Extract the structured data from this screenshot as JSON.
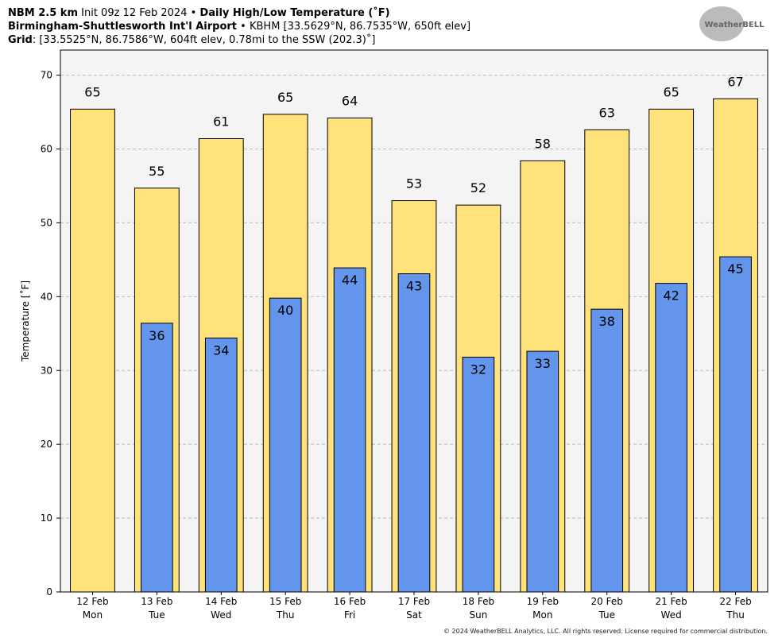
{
  "header": {
    "line1": [
      "NBM 2.5 km",
      "Init 09z 12 Feb 2024",
      "•",
      "Daily High/Low Temperature (˚F)"
    ],
    "line2": [
      "Birmingham-Shuttlesworth Int'l Airport",
      "•",
      "KBHM [33.5629°N, 86.7535°W, 650ft elev]"
    ],
    "line3": [
      "Grid",
      ": [33.5525°N, 86.7586°W, 604ft elev, 0.78mi to the SSW (202.3)˚]"
    ],
    "logo": "WeatherBELL"
  },
  "footer": "© 2024 WeatherBELL Analytics, LLC. All rights reserved. License required for commercial distribution.",
  "chart_data": {
    "type": "bar",
    "ylabel": "Temperature [˚F]",
    "categories": [
      "12 Feb",
      "13 Feb",
      "14 Feb",
      "15 Feb",
      "16 Feb",
      "17 Feb",
      "18 Feb",
      "19 Feb",
      "20 Feb",
      "21 Feb",
      "22 Feb"
    ],
    "weekdays": [
      "Mon",
      "Tue",
      "Wed",
      "Thu",
      "Fri",
      "Sat",
      "Sun",
      "Mon",
      "Tue",
      "Wed",
      "Thu"
    ],
    "series": [
      {
        "color": "#ffe27a",
        "values": [
          65.4,
          54.7,
          61.4,
          64.7,
          64.2,
          53.0,
          52.4,
          58.4,
          62.6,
          65.4,
          66.8
        ],
        "value_labels": [
          "65",
          "55",
          "61",
          "65",
          "64",
          "53",
          "52",
          "58",
          "63",
          "65",
          "67"
        ]
      },
      {
        "color": "#6495ed",
        "values": [
          null,
          36.4,
          34.4,
          39.8,
          43.9,
          43.1,
          31.8,
          32.6,
          38.3,
          41.8,
          45.4
        ],
        "value_labels": [
          null,
          "36",
          "34",
          "40",
          "44",
          "43",
          "32",
          "33",
          "38",
          "42",
          "45"
        ]
      }
    ],
    "ylim": [
      0,
      73.4
    ],
    "yticks": [
      0,
      10,
      20,
      30,
      40,
      50,
      60,
      70
    ],
    "grid": true
  }
}
